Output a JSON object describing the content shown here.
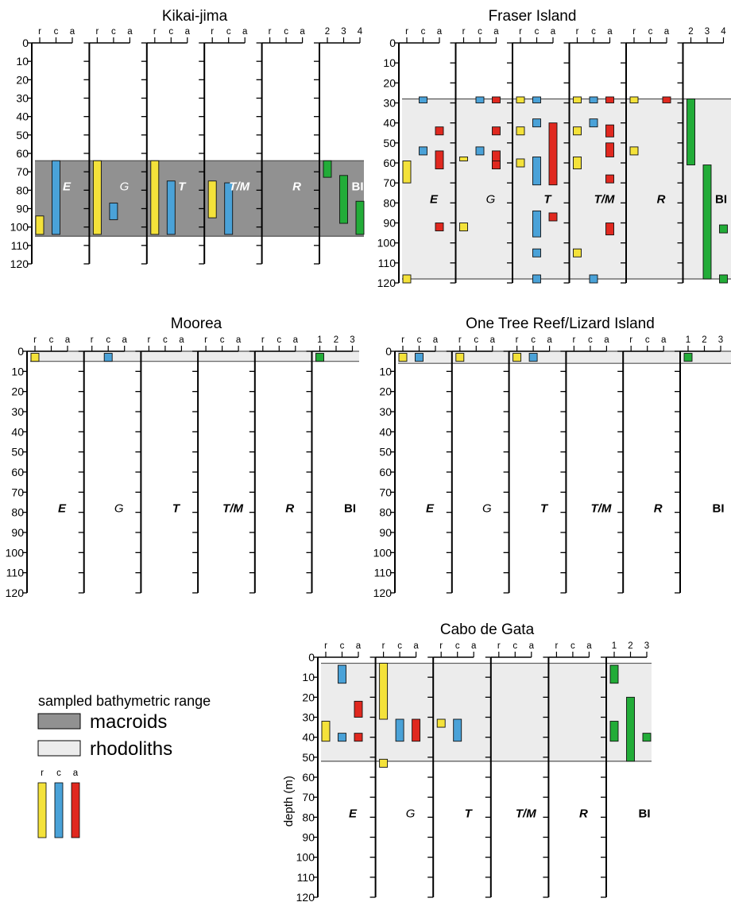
{
  "chart_data": [
    {
      "type": "range-chart",
      "title": "Kikai-jima",
      "yticks": [
        0,
        10,
        20,
        30,
        40,
        50,
        60,
        70,
        80,
        90,
        100,
        110,
        120
      ],
      "ylim": [
        0,
        120
      ],
      "sampled_range": {
        "type": "macroids",
        "from": 64,
        "to": 105
      },
      "columns": [
        {
          "label": "E",
          "scale": [
            "r",
            "c",
            "a"
          ],
          "bars": [
            {
              "level": "r",
              "from": 94,
              "to": 104
            },
            {
              "level": "c",
              "from": 64,
              "to": 104
            }
          ]
        },
        {
          "label": "G",
          "scale": [
            "r",
            "c",
            "a"
          ],
          "bars": [
            {
              "level": "r",
              "from": 64,
              "to": 104
            },
            {
              "level": "c",
              "from": 87,
              "to": 96
            }
          ]
        },
        {
          "label": "T",
          "scale": [
            "r",
            "c",
            "a"
          ],
          "bars": [
            {
              "level": "r",
              "from": 64,
              "to": 104
            },
            {
              "level": "c",
              "from": 75,
              "to": 104
            }
          ]
        },
        {
          "label": "T/M",
          "scale": [
            "r",
            "c",
            "a"
          ],
          "bars": [
            {
              "level": "r",
              "from": 75,
              "to": 95
            },
            {
              "level": "c",
              "from": 76,
              "to": 104
            }
          ]
        },
        {
          "label": "R",
          "scale": [
            "r",
            "c",
            "a"
          ],
          "bars": []
        },
        {
          "label": "BI",
          "scale": [
            "2",
            "3",
            "4"
          ],
          "bars": [
            {
              "level": "2",
              "from": 64,
              "to": 73
            },
            {
              "level": "3",
              "from": 72,
              "to": 98
            },
            {
              "level": "4",
              "from": 86,
              "to": 104
            }
          ]
        }
      ]
    },
    {
      "type": "range-chart",
      "title": "Fraser Island",
      "yticks": [
        0,
        10,
        20,
        30,
        40,
        50,
        60,
        70,
        80,
        90,
        100,
        110,
        120
      ],
      "ylim": [
        0,
        120
      ],
      "sampled_range": {
        "type": "rhodoliths",
        "from": 28,
        "to": 118
      },
      "columns": [
        {
          "label": "E",
          "scale": [
            "r",
            "c",
            "a"
          ],
          "bars": [
            {
              "level": "r",
              "from": 59,
              "to": 70
            },
            {
              "level": "r",
              "from": 116,
              "to": 120
            },
            {
              "level": "c",
              "from": 27,
              "to": 30
            },
            {
              "level": "c",
              "from": 52,
              "to": 56
            },
            {
              "level": "a",
              "from": 42,
              "to": 46
            },
            {
              "level": "a",
              "from": 54,
              "to": 63
            },
            {
              "level": "a",
              "from": 90,
              "to": 94
            }
          ]
        },
        {
          "label": "G",
          "scale": [
            "r",
            "c",
            "a"
          ],
          "bars": [
            {
              "level": "r",
              "from": 57,
              "to": 59
            },
            {
              "level": "r",
              "from": 90,
              "to": 94
            },
            {
              "level": "c",
              "from": 27,
              "to": 30
            },
            {
              "level": "c",
              "from": 52,
              "to": 56
            },
            {
              "level": "a",
              "from": 27,
              "to": 30
            },
            {
              "level": "a",
              "from": 42,
              "to": 46
            },
            {
              "level": "a",
              "from": 54,
              "to": 63
            },
            {
              "level": "a",
              "from": 59,
              "to": 63
            }
          ]
        },
        {
          "label": "T",
          "scale": [
            "r",
            "c",
            "a"
          ],
          "bars": [
            {
              "level": "r",
              "from": 27,
              "to": 30
            },
            {
              "level": "r",
              "from": 42,
              "to": 46
            },
            {
              "level": "r",
              "from": 58,
              "to": 62
            },
            {
              "level": "c",
              "from": 27,
              "to": 30
            },
            {
              "level": "c",
              "from": 38,
              "to": 42
            },
            {
              "level": "c",
              "from": 57,
              "to": 71
            },
            {
              "level": "c",
              "from": 84,
              "to": 97
            },
            {
              "level": "c",
              "from": 103,
              "to": 107
            },
            {
              "level": "c",
              "from": 116,
              "to": 120
            },
            {
              "level": "a",
              "from": 40,
              "to": 71
            },
            {
              "level": "a",
              "from": 85,
              "to": 89
            }
          ]
        },
        {
          "label": "T/M",
          "scale": [
            "r",
            "c",
            "a"
          ],
          "bars": [
            {
              "level": "r",
              "from": 27,
              "to": 30
            },
            {
              "level": "r",
              "from": 42,
              "to": 46
            },
            {
              "level": "r",
              "from": 57,
              "to": 63
            },
            {
              "level": "r",
              "from": 103,
              "to": 107
            },
            {
              "level": "c",
              "from": 27,
              "to": 30
            },
            {
              "level": "c",
              "from": 38,
              "to": 42
            },
            {
              "level": "c",
              "from": 116,
              "to": 120
            },
            {
              "level": "a",
              "from": 27,
              "to": 30
            },
            {
              "level": "a",
              "from": 41,
              "to": 47
            },
            {
              "level": "a",
              "from": 50,
              "to": 57
            },
            {
              "level": "a",
              "from": 66,
              "to": 70
            },
            {
              "level": "a",
              "from": 90,
              "to": 96
            }
          ]
        },
        {
          "label": "R",
          "scale": [
            "r",
            "c",
            "a"
          ],
          "bars": [
            {
              "level": "r",
              "from": 27,
              "to": 30
            },
            {
              "level": "r",
              "from": 52,
              "to": 56
            },
            {
              "level": "a",
              "from": 27,
              "to": 30
            }
          ]
        },
        {
          "label": "BI",
          "scale": [
            "2",
            "3",
            "4"
          ],
          "bars": [
            {
              "level": "2",
              "from": 28,
              "to": 61
            },
            {
              "level": "3",
              "from": 61,
              "to": 118
            },
            {
              "level": "4",
              "from": 91,
              "to": 95
            },
            {
              "level": "4",
              "from": 116,
              "to": 120
            }
          ]
        }
      ]
    },
    {
      "type": "range-chart",
      "title": "Moorea",
      "yticks": [
        0,
        10,
        20,
        30,
        40,
        50,
        60,
        70,
        80,
        90,
        100,
        110,
        120
      ],
      "ylim": [
        0,
        120
      ],
      "sampled_range": {
        "type": "rhodoliths",
        "from": 0,
        "to": 5
      },
      "columns": [
        {
          "label": "E",
          "scale": [
            "r",
            "c",
            "a"
          ],
          "bars": [
            {
              "level": "r",
              "from": 1,
              "to": 5
            }
          ]
        },
        {
          "label": "G",
          "scale": [
            "r",
            "c",
            "a"
          ],
          "bars": [
            {
              "level": "c",
              "from": 1,
              "to": 5
            }
          ]
        },
        {
          "label": "T",
          "scale": [
            "r",
            "c",
            "a"
          ],
          "bars": []
        },
        {
          "label": "T/M",
          "scale": [
            "r",
            "c",
            "a"
          ],
          "bars": []
        },
        {
          "label": "R",
          "scale": [
            "r",
            "c",
            "a"
          ],
          "bars": []
        },
        {
          "label": "BI",
          "scale": [
            "1",
            "2",
            "3"
          ],
          "bars": [
            {
              "level": "1",
              "from": 1,
              "to": 5
            }
          ]
        }
      ]
    },
    {
      "type": "range-chart",
      "title": "One Tree Reef/Lizard Island",
      "yticks": [
        0,
        10,
        20,
        30,
        40,
        50,
        60,
        70,
        80,
        90,
        100,
        110,
        120
      ],
      "ylim": [
        0,
        120
      ],
      "sampled_range": {
        "type": "rhodoliths",
        "from": 0,
        "to": 6
      },
      "columns": [
        {
          "label": "E",
          "scale": [
            "r",
            "c",
            "a"
          ],
          "bars": [
            {
              "level": "r",
              "from": 1,
              "to": 5
            },
            {
              "level": "c",
              "from": 1,
              "to": 5
            }
          ]
        },
        {
          "label": "G",
          "scale": [
            "r",
            "c",
            "a"
          ],
          "bars": [
            {
              "level": "r",
              "from": 1,
              "to": 5
            }
          ]
        },
        {
          "label": "T",
          "scale": [
            "r",
            "c",
            "a"
          ],
          "bars": [
            {
              "level": "r",
              "from": 1,
              "to": 5
            },
            {
              "level": "c",
              "from": 1,
              "to": 5
            }
          ]
        },
        {
          "label": "T/M",
          "scale": [
            "r",
            "c",
            "a"
          ],
          "bars": []
        },
        {
          "label": "R",
          "scale": [
            "r",
            "c",
            "a"
          ],
          "bars": []
        },
        {
          "label": "BI",
          "scale": [
            "1",
            "2",
            "3"
          ],
          "bars": [
            {
              "level": "1",
              "from": 1,
              "to": 5
            }
          ]
        }
      ]
    },
    {
      "type": "range-chart",
      "title": "Cabo de Gata",
      "yticks": [
        0,
        10,
        20,
        30,
        40,
        50,
        60,
        70,
        80,
        90,
        100,
        110,
        120
      ],
      "ylim": [
        0,
        120
      ],
      "ylabel": "depth (m)",
      "sampled_range": {
        "type": "rhodoliths",
        "from": 3,
        "to": 52
      },
      "columns": [
        {
          "label": "E",
          "scale": [
            "r",
            "c",
            "a"
          ],
          "bars": [
            {
              "level": "r",
              "from": 32,
              "to": 42
            },
            {
              "level": "c",
              "from": 4,
              "to": 13
            },
            {
              "level": "c",
              "from": 38,
              "to": 42
            },
            {
              "level": "a",
              "from": 22,
              "to": 30
            },
            {
              "level": "a",
              "from": 38,
              "to": 42
            }
          ]
        },
        {
          "label": "G",
          "scale": [
            "r",
            "c",
            "a"
          ],
          "bars": [
            {
              "level": "r",
              "from": 3,
              "to": 31
            },
            {
              "level": "r",
              "from": 51,
              "to": 55
            },
            {
              "level": "c",
              "from": 31,
              "to": 42
            },
            {
              "level": "a",
              "from": 31,
              "to": 42
            }
          ]
        },
        {
          "label": "T",
          "scale": [
            "r",
            "c",
            "a"
          ],
          "bars": [
            {
              "level": "r",
              "from": 31,
              "to": 35
            },
            {
              "level": "c",
              "from": 31,
              "to": 42
            }
          ]
        },
        {
          "label": "T/M",
          "scale": [
            "r",
            "c",
            "a"
          ],
          "bars": []
        },
        {
          "label": "R",
          "scale": [
            "r",
            "c",
            "a"
          ],
          "bars": []
        },
        {
          "label": "BI",
          "scale": [
            "1",
            "2",
            "3"
          ],
          "bars": [
            {
              "level": "1",
              "from": 4,
              "to": 13
            },
            {
              "level": "1",
              "from": 32,
              "to": 42
            },
            {
              "level": "2",
              "from": 20,
              "to": 52
            },
            {
              "level": "3",
              "from": 38,
              "to": 42
            }
          ]
        }
      ]
    }
  ],
  "legend": {
    "title": "sampled bathymetric range",
    "items": [
      {
        "label": "macroids",
        "color": "#919191"
      },
      {
        "label": "rhodoliths",
        "color": "#ececec"
      }
    ],
    "bar_scale": [
      "r",
      "c",
      "a"
    ],
    "bar_colors": {
      "r": "#f4e23a",
      "c": "#4aa2d8",
      "a": "#e0281f"
    }
  },
  "colors": {
    "bi": "#22ac38",
    "macroids": "#919191",
    "rhodoliths": "#ececec"
  }
}
